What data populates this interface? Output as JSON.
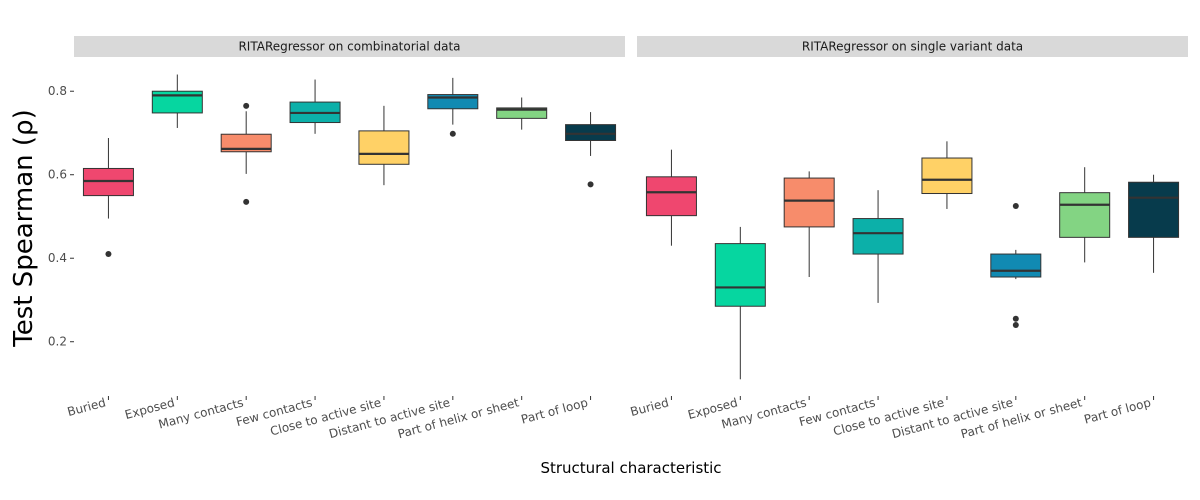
{
  "chart_data": {
    "type": "boxplot",
    "ylabel": "Test Spearman (ρ)",
    "xlabel": "Structural characteristic",
    "ylim": [
      0.07,
      0.87
    ],
    "yticks": [
      0.2,
      0.4,
      0.6,
      0.8
    ],
    "ytick_labels": [
      "0.2",
      "0.4",
      "0.6",
      "0.8"
    ],
    "grid": false,
    "legend": "none",
    "categories": [
      "Buried",
      "Exposed",
      "Many contacts",
      "Few contacts",
      "Close to active site",
      "Distant to active site",
      "Part of helix or sheet",
      "Part of loop"
    ],
    "colors": [
      "#ef476f",
      "#06d6a0",
      "#f78c6b",
      "#0cb0a9",
      "#ffd166",
      "#118ab2",
      "#83d483",
      "#073b4c"
    ],
    "panels": [
      {
        "title": "RITARegressor on combinatorial data",
        "boxes": [
          {
            "category": "Buried",
            "whisker_low": 0.495,
            "q1": 0.55,
            "median": 0.585,
            "q3": 0.615,
            "whisker_high": 0.688,
            "outliers": [
              0.41
            ]
          },
          {
            "category": "Exposed",
            "whisker_low": 0.712,
            "q1": 0.748,
            "median": 0.79,
            "q3": 0.8,
            "whisker_high": 0.84,
            "outliers": []
          },
          {
            "category": "Many contacts",
            "whisker_low": 0.602,
            "q1": 0.655,
            "median": 0.662,
            "q3": 0.697,
            "whisker_high": 0.752,
            "outliers": [
              0.535,
              0.765
            ]
          },
          {
            "category": "Few contacts",
            "whisker_low": 0.698,
            "q1": 0.725,
            "median": 0.748,
            "q3": 0.774,
            "whisker_high": 0.828,
            "outliers": []
          },
          {
            "category": "Close to active site",
            "whisker_low": 0.575,
            "q1": 0.625,
            "median": 0.65,
            "q3": 0.705,
            "whisker_high": 0.765,
            "outliers": []
          },
          {
            "category": "Distant to active site",
            "whisker_low": 0.72,
            "q1": 0.758,
            "median": 0.785,
            "q3": 0.792,
            "whisker_high": 0.832,
            "outliers": [
              0.698
            ]
          },
          {
            "category": "Part of helix or sheet",
            "whisker_low": 0.708,
            "q1": 0.735,
            "median": 0.756,
            "q3": 0.76,
            "whisker_high": 0.785,
            "outliers": []
          },
          {
            "category": "Part of loop",
            "whisker_low": 0.645,
            "q1": 0.682,
            "median": 0.698,
            "q3": 0.72,
            "whisker_high": 0.75,
            "outliers": [
              0.577
            ]
          }
        ]
      },
      {
        "title": "RITARegressor on single variant data",
        "boxes": [
          {
            "category": "Buried",
            "whisker_low": 0.43,
            "q1": 0.502,
            "median": 0.558,
            "q3": 0.595,
            "whisker_high": 0.66,
            "outliers": []
          },
          {
            "category": "Exposed",
            "whisker_low": 0.11,
            "q1": 0.285,
            "median": 0.33,
            "q3": 0.435,
            "whisker_high": 0.475,
            "outliers": []
          },
          {
            "category": "Many contacts",
            "whisker_low": 0.355,
            "q1": 0.475,
            "median": 0.538,
            "q3": 0.592,
            "whisker_high": 0.608,
            "outliers": []
          },
          {
            "category": "Few contacts",
            "whisker_low": 0.293,
            "q1": 0.41,
            "median": 0.46,
            "q3": 0.495,
            "whisker_high": 0.563,
            "outliers": []
          },
          {
            "category": "Close to active site",
            "whisker_low": 0.518,
            "q1": 0.555,
            "median": 0.588,
            "q3": 0.64,
            "whisker_high": 0.68,
            "outliers": []
          },
          {
            "category": "Distant to active site",
            "whisker_low": 0.35,
            "q1": 0.355,
            "median": 0.37,
            "q3": 0.41,
            "whisker_high": 0.42,
            "outliers": [
              0.24,
              0.255,
              0.525
            ]
          },
          {
            "category": "Part of helix or sheet",
            "whisker_low": 0.39,
            "q1": 0.45,
            "median": 0.528,
            "q3": 0.557,
            "whisker_high": 0.618,
            "outliers": []
          },
          {
            "category": "Part of loop",
            "whisker_low": 0.365,
            "q1": 0.45,
            "median": 0.545,
            "q3": 0.582,
            "whisker_high": 0.6,
            "outliers": []
          }
        ]
      }
    ]
  }
}
